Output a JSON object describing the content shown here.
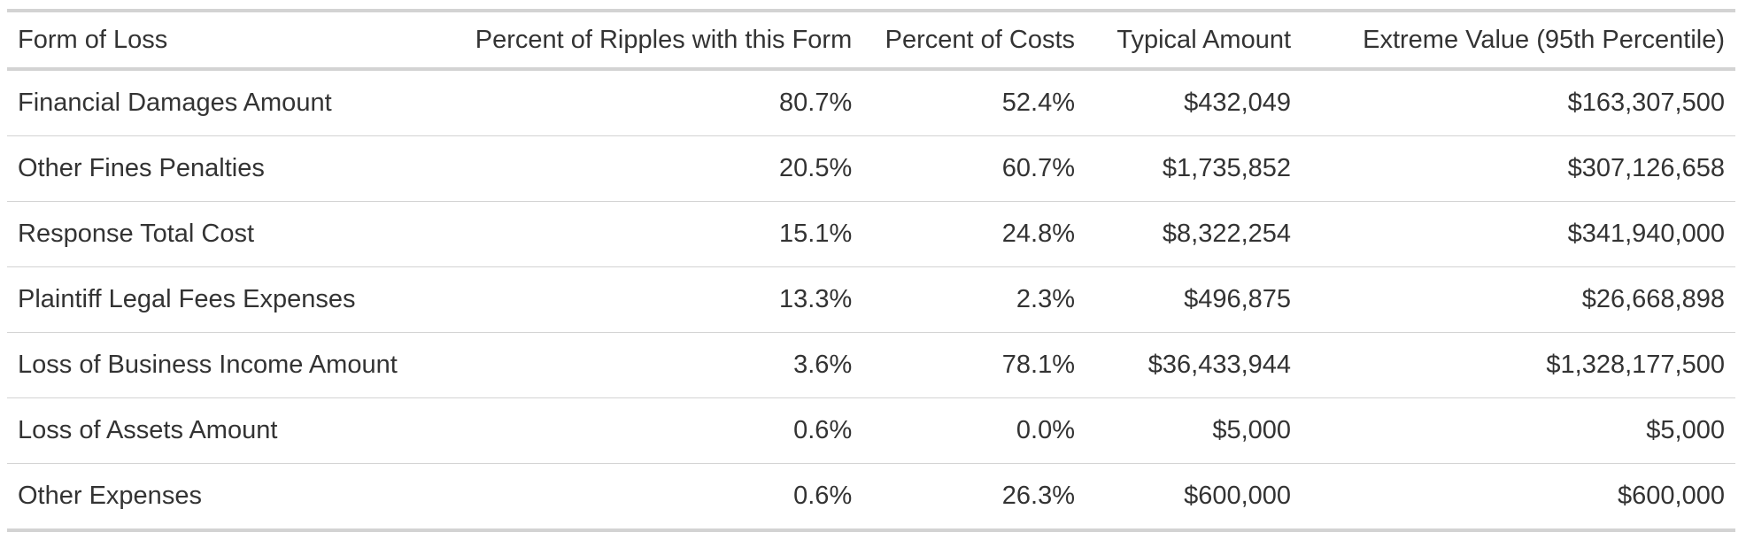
{
  "table": {
    "headers": [
      "Form of Loss",
      "Percent of Ripples with this Form",
      "Percent of Costs",
      "Typical Amount",
      "Extreme Value (95th Percentile)"
    ],
    "rows": [
      [
        "Financial Damages Amount",
        "80.7%",
        "52.4%",
        "$432,049",
        "$163,307,500"
      ],
      [
        "Other Fines Penalties",
        "20.5%",
        "60.7%",
        "$1,735,852",
        "$307,126,658"
      ],
      [
        "Response Total Cost",
        "15.1%",
        "24.8%",
        "$8,322,254",
        "$341,940,000"
      ],
      [
        "Plaintiff Legal Fees Expenses",
        "13.3%",
        "2.3%",
        "$496,875",
        "$26,668,898"
      ],
      [
        "Loss of Business Income Amount",
        "3.6%",
        "78.1%",
        "$36,433,944",
        "$1,328,177,500"
      ],
      [
        "Loss of Assets Amount",
        "0.6%",
        "0.0%",
        "$5,000",
        "$5,000"
      ],
      [
        "Other Expenses",
        "0.6%",
        "26.3%",
        "$600,000",
        "$600,000"
      ]
    ]
  }
}
